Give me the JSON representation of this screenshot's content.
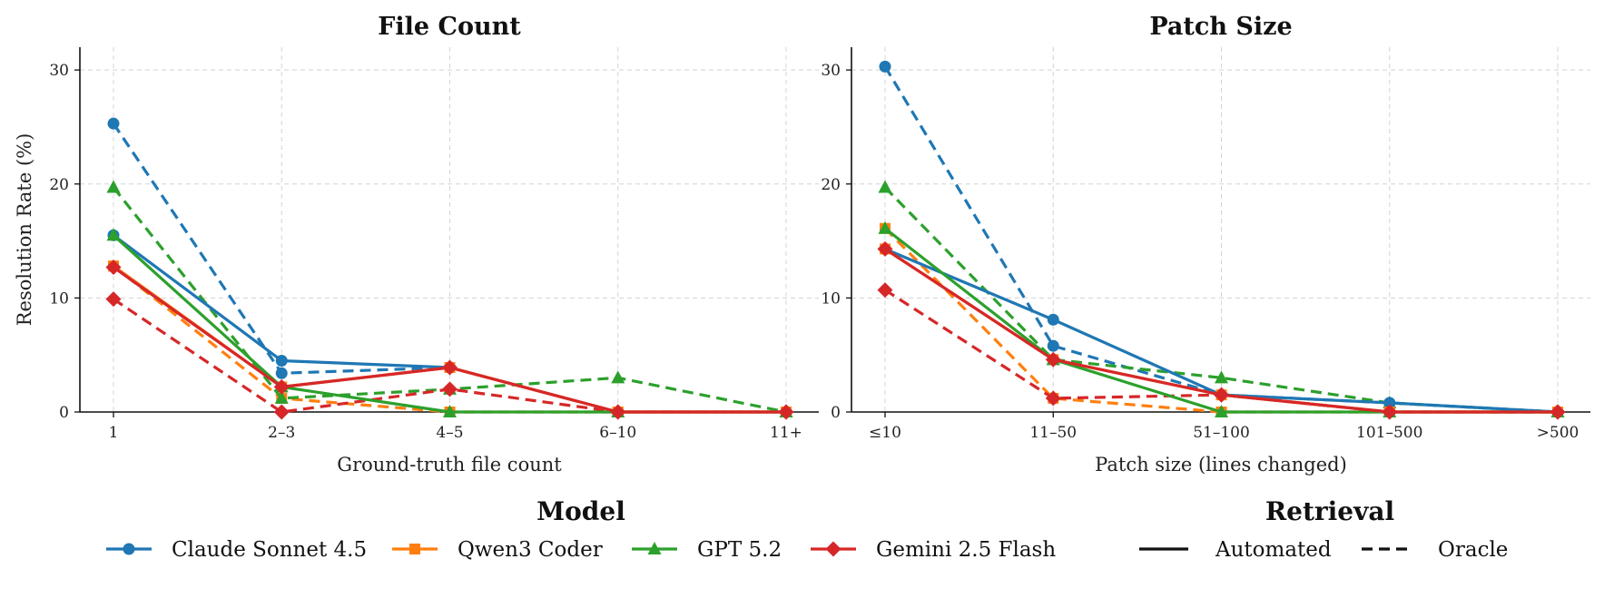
{
  "chart_data": [
    {
      "type": "line",
      "title": "File Count",
      "xlabel": "Ground-truth file count",
      "ylabel": "Resolution Rate (%)",
      "categories": [
        "1",
        "2–3",
        "4–5",
        "6–10",
        "11+"
      ],
      "ylim": [
        0,
        32
      ],
      "yticks": [
        0,
        10,
        20,
        30
      ],
      "grid": true,
      "series": [
        {
          "name": "Claude Sonnet 4.5",
          "retrieval": "Automated",
          "values": [
            15.5,
            4.5,
            3.9,
            null,
            null
          ]
        },
        {
          "name": "Claude Sonnet 4.5",
          "retrieval": "Oracle",
          "values": [
            25.3,
            3.4,
            3.9,
            null,
            null
          ]
        },
        {
          "name": "Qwen3 Coder",
          "retrieval": "Automated",
          "values": [
            12.8,
            2.2,
            3.9,
            0,
            0
          ]
        },
        {
          "name": "Qwen3 Coder",
          "retrieval": "Oracle",
          "values": [
            12.8,
            1.2,
            0,
            0,
            0
          ]
        },
        {
          "name": "GPT 5.2",
          "retrieval": "Automated",
          "values": [
            15.5,
            2.2,
            0,
            0,
            0
          ]
        },
        {
          "name": "GPT 5.2",
          "retrieval": "Oracle",
          "values": [
            19.7,
            1.2,
            2.0,
            3.0,
            0
          ]
        },
        {
          "name": "Gemini 2.5 Flash",
          "retrieval": "Automated",
          "values": [
            12.7,
            2.2,
            3.9,
            0,
            0
          ]
        },
        {
          "name": "Gemini 2.5 Flash",
          "retrieval": "Oracle",
          "values": [
            9.9,
            0,
            2.0,
            0,
            0
          ]
        }
      ]
    },
    {
      "type": "line",
      "title": "Patch Size",
      "xlabel": "Patch size (lines changed)",
      "ylabel": "",
      "categories": [
        "≤10",
        "11–50",
        "51–100",
        "101–500",
        ">500"
      ],
      "ylim": [
        0,
        32
      ],
      "yticks": [
        0,
        10,
        20,
        30
      ],
      "grid": true,
      "series": [
        {
          "name": "Claude Sonnet 4.5",
          "retrieval": "Automated",
          "values": [
            14.3,
            8.1,
            1.5,
            0.8,
            0
          ]
        },
        {
          "name": "Claude Sonnet 4.5",
          "retrieval": "Oracle",
          "values": [
            30.3,
            5.8,
            1.5,
            0.8,
            0
          ]
        },
        {
          "name": "Qwen3 Coder",
          "retrieval": "Automated",
          "values": [
            14.3,
            4.6,
            1.5,
            0,
            0
          ]
        },
        {
          "name": "Qwen3 Coder",
          "retrieval": "Oracle",
          "values": [
            16.1,
            1.2,
            0,
            0,
            0
          ]
        },
        {
          "name": "GPT 5.2",
          "retrieval": "Automated",
          "values": [
            16.1,
            4.6,
            0,
            0,
            0
          ]
        },
        {
          "name": "GPT 5.2",
          "retrieval": "Oracle",
          "values": [
            19.7,
            4.6,
            3.0,
            0.8,
            0
          ]
        },
        {
          "name": "Gemini 2.5 Flash",
          "retrieval": "Automated",
          "values": [
            14.3,
            4.6,
            1.5,
            0,
            0
          ]
        },
        {
          "name": "Gemini 2.5 Flash",
          "retrieval": "Oracle",
          "values": [
            10.7,
            1.2,
            1.5,
            0,
            0
          ]
        }
      ]
    }
  ],
  "legend": {
    "model_title": "Model",
    "models": [
      {
        "name": "Claude Sonnet 4.5",
        "color": "#1f77b4",
        "marker": "circle"
      },
      {
        "name": "Qwen3 Coder",
        "color": "#ff7f0e",
        "marker": "square"
      },
      {
        "name": "GPT 5.2",
        "color": "#2ca02c",
        "marker": "triangle"
      },
      {
        "name": "Gemini 2.5 Flash",
        "color": "#d62728",
        "marker": "diamond"
      }
    ],
    "retrieval_title": "Retrieval",
    "retrieval": [
      {
        "name": "Automated",
        "style": "solid"
      },
      {
        "name": "Oracle",
        "style": "dashed"
      }
    ],
    "placement": "bottom"
  }
}
